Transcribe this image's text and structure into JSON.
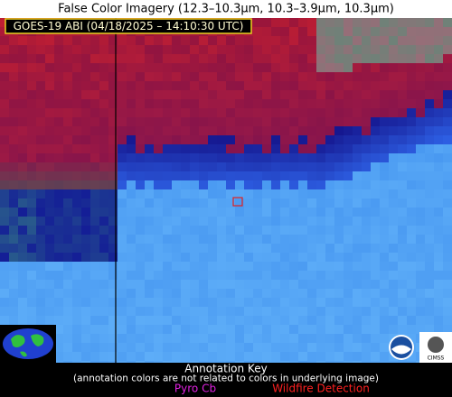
{
  "title": "False Color Imagery (12.3–10.3µm, 10.3–3.9µm, 10.3µm)",
  "header_label": "GOES-19 ABI (04/18/2025 – 14:10:30 UTC)",
  "annotation_key": {
    "title": "Annotation Key",
    "note": "(annotation colors are not related to colors in underlying image)",
    "items": [
      "Pyro Cb",
      "Wildfire Detection"
    ]
  },
  "logos": [
    "CIMSS"
  ]
}
